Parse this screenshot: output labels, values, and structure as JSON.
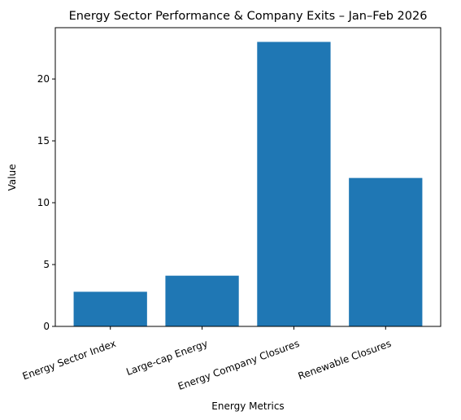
{
  "chart_data": {
    "type": "bar",
    "title": "Energy Sector Performance & Company Exits – Jan–Feb 2026",
    "xlabel": "Energy Metrics",
    "ylabel": "Value",
    "categories": [
      "Energy Sector Index",
      "Large-cap Energy",
      "Energy Company Closures",
      "Renewable Closures"
    ],
    "values": [
      2.8,
      4.1,
      23,
      12
    ],
    "ylim": [
      0,
      24.15
    ],
    "yticks": [
      0,
      5,
      10,
      15,
      20
    ],
    "bar_color": "#1f77b4",
    "grid": false,
    "xtick_rotation_deg": -20
  }
}
